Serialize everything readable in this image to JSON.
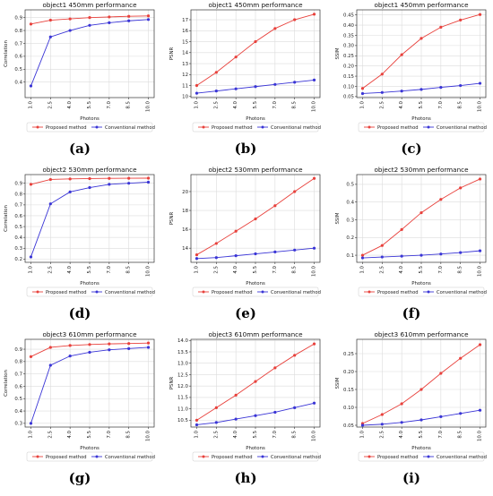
{
  "chart_data": [
    {
      "type": "line",
      "title": "object1 450mm performance",
      "xlabel": "Photons",
      "ylabel": "Correlation",
      "caption": "(a)",
      "categories": [
        "1.0",
        "2.5",
        "4.0",
        "5.5",
        "7.0",
        "8.5",
        "10.0"
      ],
      "ylim": [
        0.28,
        0.96
      ],
      "yticks": [
        "0.4",
        "0.5",
        "0.6",
        "0.7",
        "0.8",
        "0.9"
      ],
      "series": [
        {
          "name": "Proposed method",
          "color": "#e8413c",
          "values": [
            0.85,
            0.88,
            0.89,
            0.9,
            0.905,
            0.91,
            0.913
          ]
        },
        {
          "name": "Conventional method",
          "color": "#3a35d6",
          "values": [
            0.37,
            0.75,
            0.8,
            0.84,
            0.86,
            0.875,
            0.885
          ]
        }
      ]
    },
    {
      "type": "line",
      "title": "object1 450mm performance",
      "xlabel": "Photons",
      "ylabel": "PSNR",
      "caption": "(b)",
      "categories": [
        "1.0",
        "2.5",
        "4.0",
        "5.5",
        "7.0",
        "8.5",
        "10.0"
      ],
      "ylim": [
        9.9,
        17.9
      ],
      "yticks": [
        "10",
        "11",
        "12",
        "13",
        "14",
        "15",
        "16",
        "17"
      ],
      "series": [
        {
          "name": "Proposed method",
          "color": "#e8413c",
          "values": [
            11.0,
            12.2,
            13.6,
            15.0,
            16.2,
            17.0,
            17.5
          ]
        },
        {
          "name": "Conventional method",
          "color": "#3a35d6",
          "values": [
            10.3,
            10.5,
            10.7,
            10.9,
            11.1,
            11.3,
            11.5
          ]
        }
      ]
    },
    {
      "type": "line",
      "title": "object1 450mm performance",
      "xlabel": "Photons",
      "ylabel": "SSIM",
      "caption": "(c)",
      "categories": [
        "1.0",
        "2.5",
        "4.0",
        "5.5",
        "7.0",
        "8.5",
        "10.0"
      ],
      "ylim": [
        0.045,
        0.475
      ],
      "yticks": [
        "0.05",
        "0.10",
        "0.15",
        "0.20",
        "0.25",
        "0.30",
        "0.35",
        "0.40",
        "0.45"
      ],
      "series": [
        {
          "name": "Proposed method",
          "color": "#e8413c",
          "values": [
            0.09,
            0.16,
            0.255,
            0.335,
            0.39,
            0.425,
            0.452
          ]
        },
        {
          "name": "Conventional method",
          "color": "#3a35d6",
          "values": [
            0.065,
            0.07,
            0.077,
            0.085,
            0.095,
            0.104,
            0.115
          ]
        }
      ]
    },
    {
      "type": "line",
      "title": "object2 530mm performance",
      "xlabel": "Photons",
      "ylabel": "Correlation",
      "caption": "(d)",
      "categories": [
        "1.0",
        "2.5",
        "4.0",
        "5.5",
        "7.0",
        "8.5",
        "10.0"
      ],
      "ylim": [
        0.17,
        0.98
      ],
      "yticks": [
        "0.2",
        "0.3",
        "0.4",
        "0.5",
        "0.6",
        "0.7",
        "0.8",
        "0.9"
      ],
      "series": [
        {
          "name": "Proposed method",
          "color": "#e8413c",
          "values": [
            0.89,
            0.935,
            0.94,
            0.943,
            0.945,
            0.946,
            0.947
          ]
        },
        {
          "name": "Conventional method",
          "color": "#3a35d6",
          "values": [
            0.22,
            0.71,
            0.82,
            0.86,
            0.89,
            0.9,
            0.91
          ]
        }
      ]
    },
    {
      "type": "line",
      "title": "object2 530mm performance",
      "xlabel": "Photons",
      "ylabel": "PSNR",
      "caption": "(e)",
      "categories": [
        "1.0",
        "2.5",
        "4.0",
        "5.5",
        "7.0",
        "8.5",
        "10.0"
      ],
      "ylim": [
        12.5,
        21.8
      ],
      "yticks": [
        "14",
        "16",
        "18",
        "20"
      ],
      "series": [
        {
          "name": "Proposed method",
          "color": "#e8413c",
          "values": [
            13.3,
            14.5,
            15.8,
            17.1,
            18.5,
            20.0,
            21.4
          ]
        },
        {
          "name": "Conventional method",
          "color": "#3a35d6",
          "values": [
            12.9,
            13.0,
            13.2,
            13.4,
            13.6,
            13.8,
            14.0
          ]
        }
      ]
    },
    {
      "type": "line",
      "title": "object2 530mm performance",
      "xlabel": "Photons",
      "ylabel": "SSIM",
      "caption": "(f)",
      "categories": [
        "1.0",
        "2.5",
        "4.0",
        "5.5",
        "7.0",
        "8.5",
        "10.0"
      ],
      "ylim": [
        0.06,
        0.555
      ],
      "yticks": [
        "0.1",
        "0.2",
        "0.3",
        "0.4",
        "0.5"
      ],
      "series": [
        {
          "name": "Proposed method",
          "color": "#e8413c",
          "values": [
            0.1,
            0.155,
            0.245,
            0.34,
            0.415,
            0.48,
            0.53
          ]
        },
        {
          "name": "Conventional method",
          "color": "#3a35d6",
          "values": [
            0.085,
            0.09,
            0.095,
            0.1,
            0.107,
            0.115,
            0.125
          ]
        }
      ]
    },
    {
      "type": "line",
      "title": "object3 610mm performance",
      "xlabel": "Photons",
      "ylabel": "Correlation",
      "caption": "(g)",
      "categories": [
        "1.0",
        "2.5",
        "4.0",
        "5.5",
        "7.0",
        "8.5",
        "10.0"
      ],
      "ylim": [
        0.27,
        0.98
      ],
      "yticks": [
        "0.3",
        "0.4",
        "0.5",
        "0.6",
        "0.7",
        "0.8",
        "0.9"
      ],
      "series": [
        {
          "name": "Proposed method",
          "color": "#e8413c",
          "values": [
            0.84,
            0.915,
            0.93,
            0.938,
            0.943,
            0.946,
            0.95
          ]
        },
        {
          "name": "Conventional method",
          "color": "#3a35d6",
          "values": [
            0.3,
            0.77,
            0.845,
            0.875,
            0.895,
            0.905,
            0.915
          ]
        }
      ]
    },
    {
      "type": "line",
      "title": "object3 610mm performance",
      "xlabel": "Photons",
      "ylabel": "PSNR",
      "caption": "(h)",
      "categories": [
        "1.0",
        "2.5",
        "4.0",
        "5.5",
        "7.0",
        "8.5",
        "10.0"
      ],
      "ylim": [
        10.2,
        14.05
      ],
      "yticks": [
        "10.5",
        "11.0",
        "11.5",
        "12.0",
        "12.5",
        "13.0",
        "13.5",
        "14.0"
      ],
      "series": [
        {
          "name": "Proposed method",
          "color": "#e8413c",
          "values": [
            10.5,
            11.05,
            11.6,
            12.2,
            12.8,
            13.35,
            13.85
          ]
        },
        {
          "name": "Conventional method",
          "color": "#3a35d6",
          "values": [
            10.3,
            10.4,
            10.55,
            10.7,
            10.85,
            11.05,
            11.25
          ]
        }
      ]
    },
    {
      "type": "line",
      "title": "object3 610mm performance",
      "xlabel": "Photons",
      "ylabel": "SSIM",
      "caption": "(i)",
      "categories": [
        "1.0",
        "2.5",
        "4.0",
        "5.5",
        "7.0",
        "8.5",
        "10.0"
      ],
      "ylim": [
        0.045,
        0.29
      ],
      "yticks": [
        "0.05",
        "0.10",
        "0.15",
        "0.20",
        "0.25"
      ],
      "series": [
        {
          "name": "Proposed method",
          "color": "#e8413c",
          "values": [
            0.055,
            0.08,
            0.11,
            0.15,
            0.195,
            0.237,
            0.275
          ]
        },
        {
          "name": "Conventional method",
          "color": "#3a35d6",
          "values": [
            0.05,
            0.053,
            0.058,
            0.065,
            0.074,
            0.083,
            0.092
          ]
        }
      ]
    }
  ]
}
